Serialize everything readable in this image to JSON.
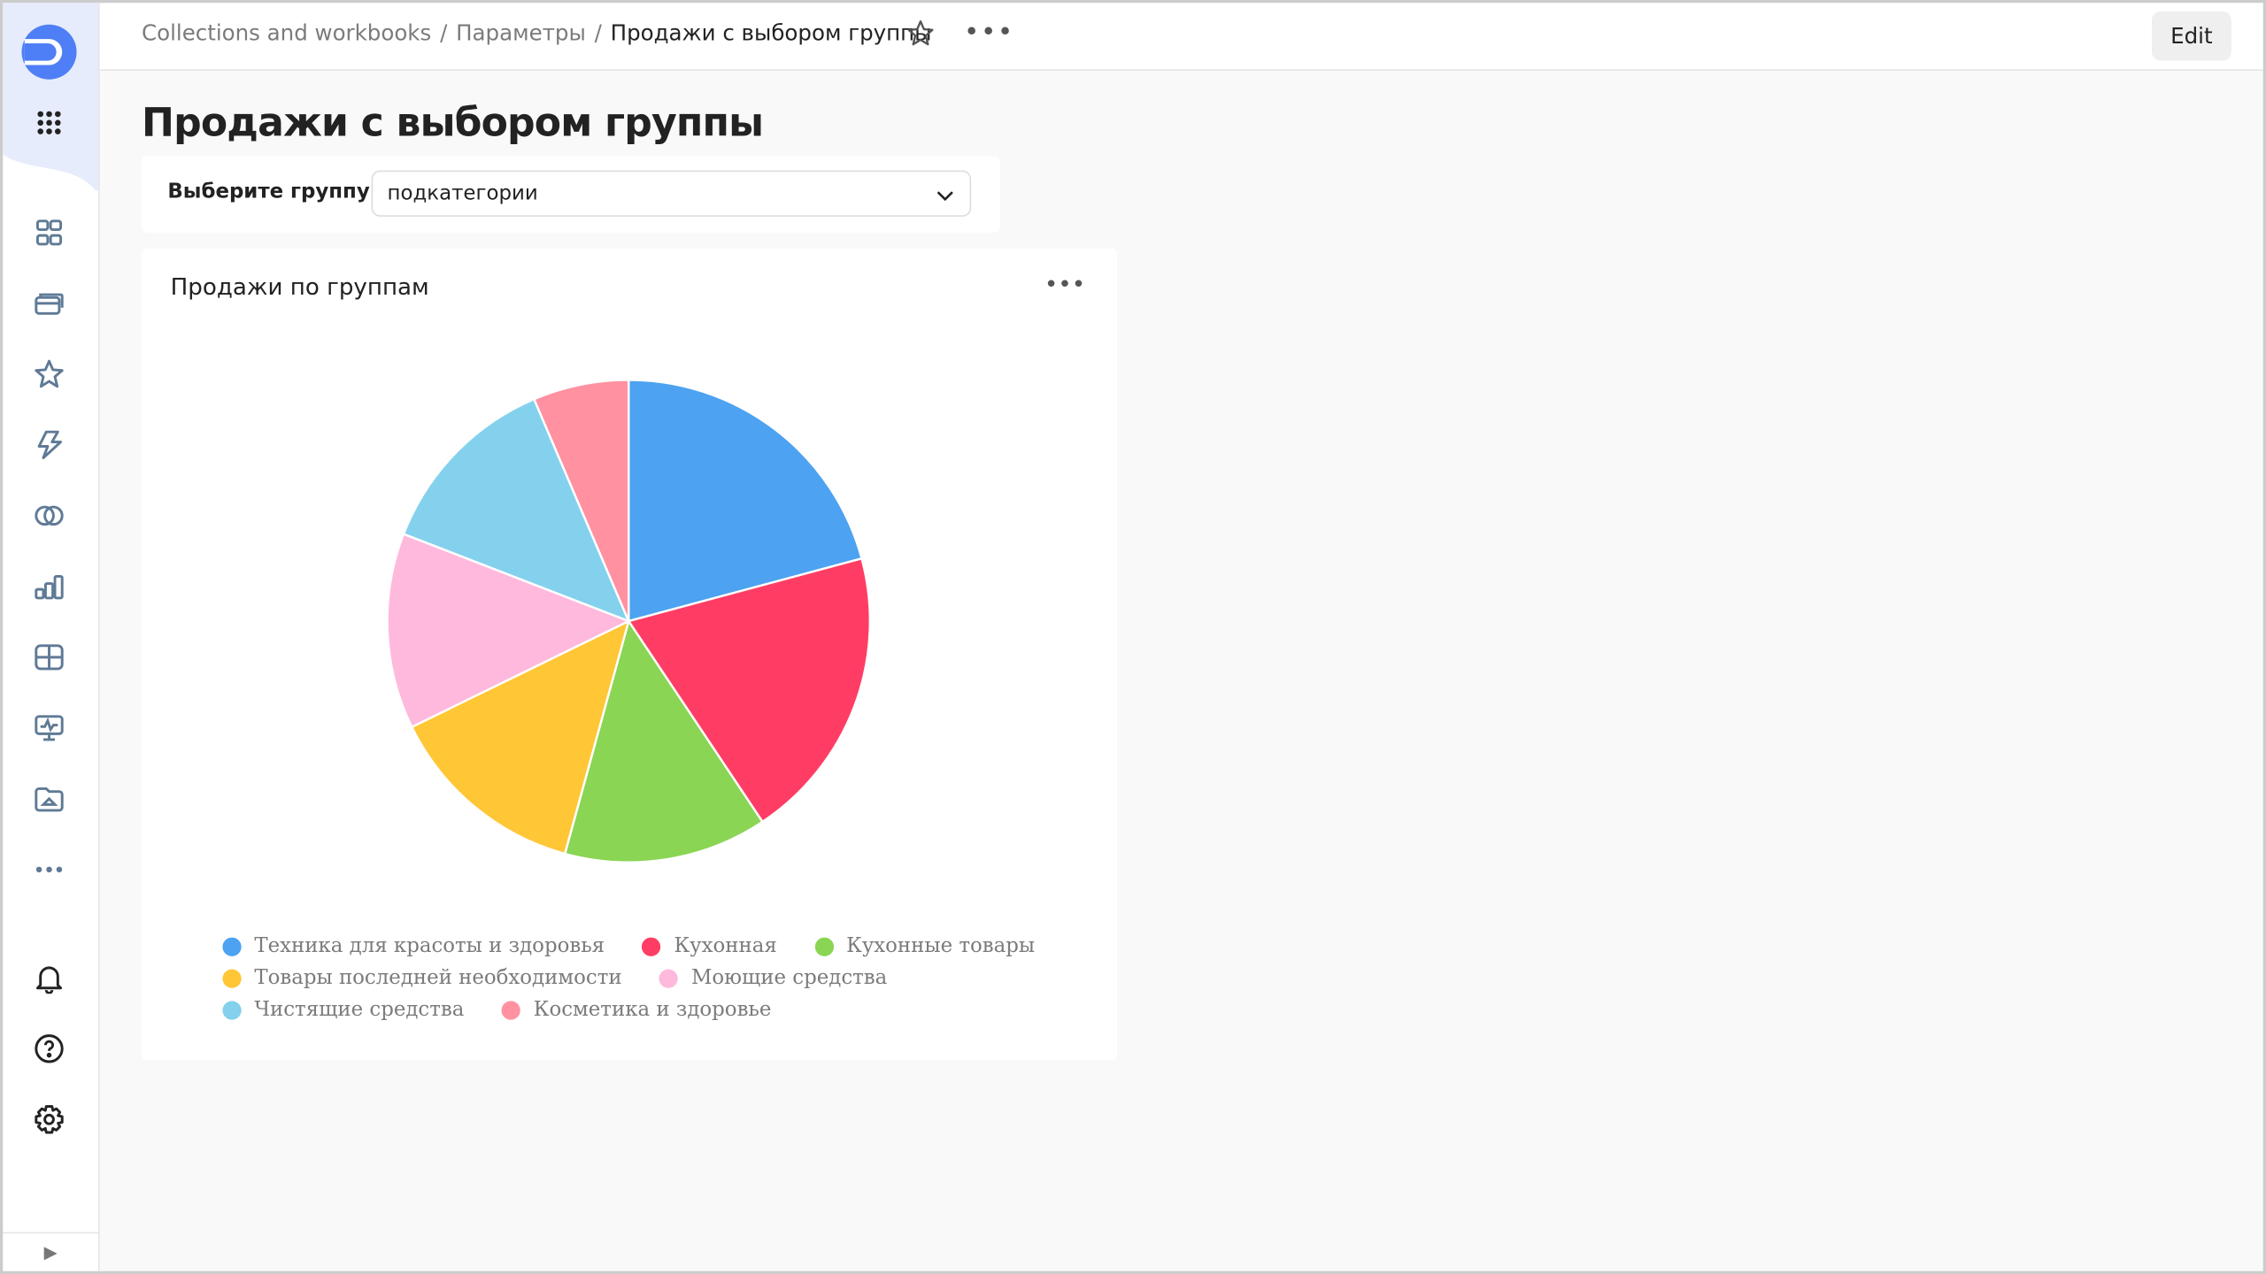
{
  "header": {
    "breadcrumbs": [
      "Collections and workbooks",
      "Параметры",
      "Продажи с выбором группы"
    ],
    "separator": "/",
    "more": "•••",
    "edit_label": "Edit"
  },
  "page": {
    "title": "Продажи с выбором группы"
  },
  "selector": {
    "label": "Выберите группу",
    "value": "подкатегории"
  },
  "sidebar": {
    "items": [
      "collections-icon",
      "folders-icon",
      "favorites-icon",
      "lightning-icon",
      "connections-icon",
      "charts-icon",
      "datasets-icon",
      "dashboards-icon",
      "reports-icon",
      "more-icon"
    ],
    "bottom": [
      "bell-icon",
      "help-icon",
      "settings-icon"
    ],
    "collapse": "▶"
  },
  "panel": {
    "more": "•••"
  },
  "chart_data": {
    "type": "pie",
    "title": "Продажи по группам",
    "legend_position": "bottom",
    "unit": "percent share (estimated from slice angles)",
    "slices": [
      {
        "name": "Техника для красоты и здоровья",
        "value": 20.8,
        "color": "#4da2f1"
      },
      {
        "name": "Кухонная",
        "value": 19.8,
        "color": "#ff3d64"
      },
      {
        "name": "Кухонные товары",
        "value": 13.6,
        "color": "#8ad554"
      },
      {
        "name": "Товары последней необходимости",
        "value": 13.5,
        "color": "#ffc636"
      },
      {
        "name": "Моющие средства",
        "value": 13.1,
        "color": "#ffb9dd"
      },
      {
        "name": "Чистящие средства",
        "value": 12.7,
        "color": "#84d1ee"
      },
      {
        "name": "Косметика и здоровье",
        "value": 6.4,
        "color": "#ff91a1"
      }
    ]
  }
}
